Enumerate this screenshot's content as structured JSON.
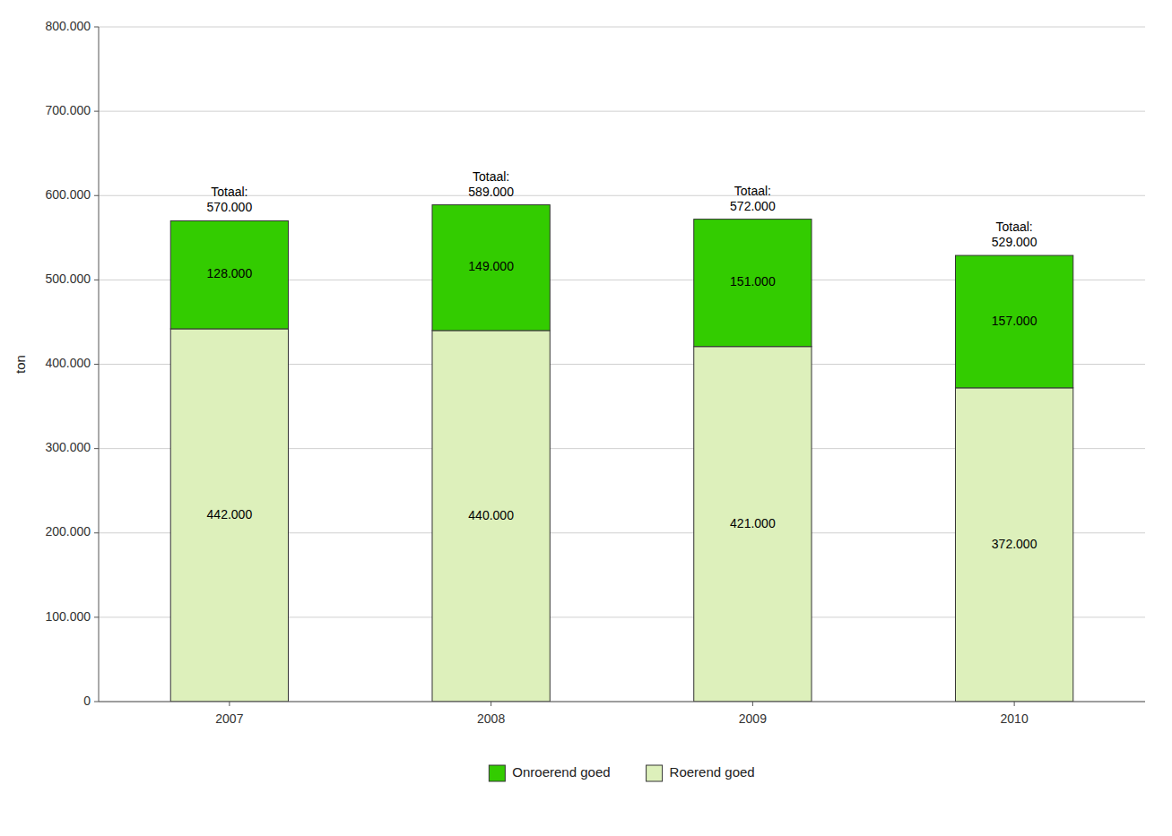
{
  "chart_data": {
    "type": "bar",
    "stacked": true,
    "data_labels": true,
    "grid": true,
    "legend": "bottom",
    "y_label": "ton",
    "categories": [
      "2007",
      "2008",
      "2009",
      "2010"
    ],
    "series": [
      {
        "name": "Roerend goed",
        "color": "#ddf0bb",
        "values": [
          442000,
          440000,
          421000,
          372000
        ],
        "value_labels": [
          "442.000",
          "440.000",
          "421.000",
          "372.000"
        ]
      },
      {
        "name": "Onroerend goed",
        "color": "#33cc00",
        "values": [
          128000,
          149000,
          151000,
          157000
        ],
        "value_labels": [
          "128.000",
          "149.000",
          "151.000",
          "157.000"
        ]
      }
    ],
    "totals": [
      570000,
      589000,
      572000,
      529000
    ],
    "total_labels": [
      "Totaal:\n570.000",
      "Totaal:\n589.000",
      "Totaal:\n572.000",
      "Totaal:\n529.000"
    ],
    "ylim": [
      0,
      800000
    ],
    "yticks": [
      0,
      {
        "value": 100000,
        "label": "100.000"
      },
      {
        "value": 200000,
        "label": "200.000"
      },
      {
        "value": 300000,
        "label": "300.000"
      },
      {
        "value": 400000,
        "label": "400.000"
      },
      {
        "value": 500000,
        "label": "500.000"
      },
      {
        "value": 600000,
        "label": "600.000"
      },
      {
        "value": 700000,
        "label": "700.000"
      },
      {
        "value": 800000,
        "label": "800.000"
      }
    ]
  }
}
